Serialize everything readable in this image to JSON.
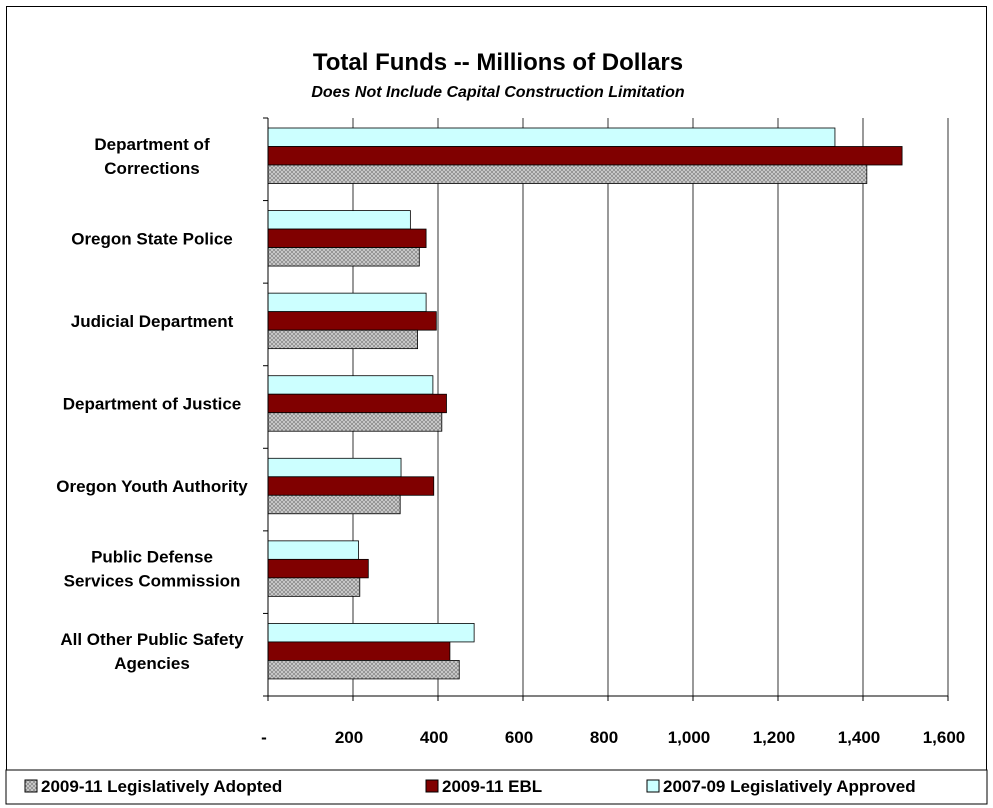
{
  "chart_data": {
    "type": "bar",
    "orientation": "horizontal",
    "title": "Total Funds -- Millions of Dollars",
    "subtitle": "Does Not Include Capital Construction Limitation",
    "categories": [
      [
        "Department of",
        "Corrections"
      ],
      [
        "Oregon State Police"
      ],
      [
        "Judicial Department"
      ],
      [
        "Department of Justice"
      ],
      [
        "Oregon Youth Authority"
      ],
      [
        "Public Defense",
        "Services Commission"
      ],
      [
        "All Other Public Safety",
        "Agencies"
      ]
    ],
    "series": [
      {
        "name": "2007-09 Legislatively Approved",
        "values": [
          1334,
          335,
          372,
          388,
          313,
          213,
          485
        ]
      },
      {
        "name": "2009-11 EBL",
        "values": [
          1492,
          372,
          396,
          420,
          390,
          236,
          428
        ]
      },
      {
        "name": "2009-11 Legislatively Adopted",
        "values": [
          1409,
          356,
          352,
          409,
          311,
          216,
          450
        ]
      }
    ],
    "xlim": [
      0,
      1600
    ],
    "x_ticks": [
      0,
      200,
      400,
      600,
      800,
      1000,
      1200,
      1400,
      1600
    ],
    "x_tick_labels": [
      "-",
      "200",
      "400",
      "600",
      "800",
      "1,000",
      "1,200",
      "1,400",
      "1,600"
    ],
    "grid": "vertical",
    "legend_position": "bottom",
    "legend": [
      {
        "name": "2009-11 Legislatively Adopted",
        "style": "hatched-gray"
      },
      {
        "name": "2009-11 EBL",
        "color": "#800000"
      },
      {
        "name": "2007-09 Legislatively Approved",
        "color": "#ccffff"
      }
    ],
    "colors": {
      "approved": "#ccffff",
      "ebl": "#800000",
      "adopted": "#c8c8c8"
    }
  }
}
